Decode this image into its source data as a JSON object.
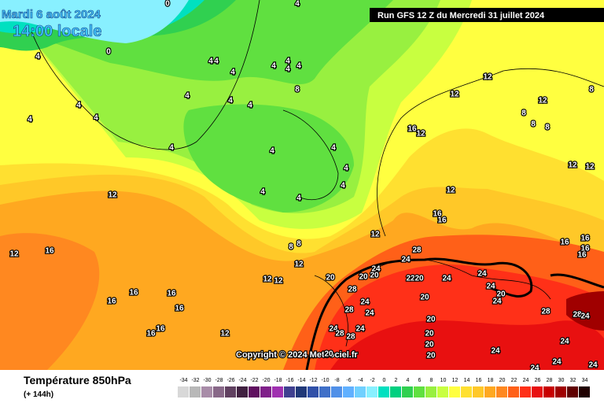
{
  "header": {
    "date": "Mardi 6 août 2024",
    "time": "14:00 locale",
    "run": "Run GFS 12 Z du Mercredi 31 juillet 2024"
  },
  "copyright": "Copyright © 2024 Meteociel.fr",
  "map": {
    "contour_labels": [
      0,
      4,
      0,
      4,
      4,
      4,
      4,
      4,
      4,
      4,
      4,
      4,
      4,
      4,
      4,
      4,
      4,
      4,
      4,
      4,
      4,
      4,
      4,
      4,
      8,
      8,
      8,
      12,
      12,
      16,
      12,
      12,
      12,
      12,
      16,
      16,
      16,
      16,
      16,
      16,
      12,
      16,
      12,
      12,
      12,
      12,
      8,
      8,
      8,
      8,
      12,
      12,
      12,
      16,
      16,
      16,
      16,
      16,
      16,
      24,
      28,
      24,
      24,
      24,
      24,
      20,
      28,
      24,
      24,
      28,
      24,
      28,
      24,
      28,
      20,
      24,
      22,
      20,
      20,
      20,
      20,
      20,
      20,
      24,
      28,
      28,
      24,
      24,
      24,
      24,
      24,
      20,
      20,
      20
    ]
  },
  "legend": {
    "title": "Température 850hPa",
    "subtitle": "(+ 144h)",
    "scale": [
      -34,
      -32,
      -30,
      -28,
      -26,
      -24,
      -22,
      -20,
      -18,
      -16,
      -14,
      -12,
      -10,
      -8,
      -6,
      -4,
      -2,
      0,
      2,
      4,
      6,
      8,
      10,
      12,
      14,
      16,
      18,
      20,
      22,
      24,
      26,
      28,
      30,
      32,
      34
    ],
    "colors": [
      "#d8d8d8",
      "#b8b8b8",
      "#a88ca8",
      "#886888",
      "#604060",
      "#402040",
      "#601060",
      "#80208a",
      "#a030b0",
      "#404090",
      "#203878",
      "#3050a8",
      "#4070c8",
      "#5090e8",
      "#60b0ff",
      "#70d0ff",
      "#88f0ff",
      "#00e0c0",
      "#00d080",
      "#30d050",
      "#60e040",
      "#98f040",
      "#c8ff40",
      "#ffff40",
      "#ffe030",
      "#ffc828",
      "#ffa820",
      "#ff8820",
      "#ff6018",
      "#ff3018",
      "#e81010",
      "#c80000",
      "#a00000",
      "#600000",
      "#200000"
    ]
  }
}
